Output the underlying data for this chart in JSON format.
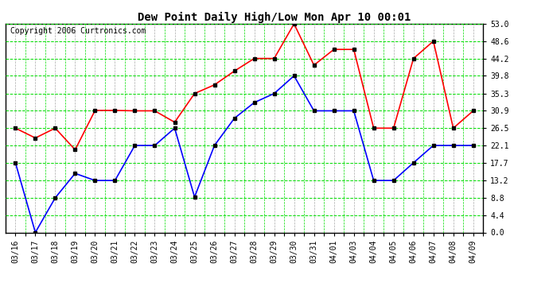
{
  "title": "Dew Point Daily High/Low Mon Apr 10 00:01",
  "copyright": "Copyright 2006 Curtronics.com",
  "x_labels": [
    "03/16",
    "03/17",
    "03/18",
    "03/19",
    "03/20",
    "03/21",
    "03/22",
    "03/23",
    "03/24",
    "03/25",
    "03/26",
    "03/27",
    "03/28",
    "03/29",
    "03/30",
    "03/31",
    "04/01",
    "04/03",
    "04/04",
    "04/05",
    "04/06",
    "04/07",
    "04/08",
    "04/09"
  ],
  "high_values": [
    26.5,
    24.0,
    26.5,
    21.0,
    31.0,
    31.0,
    30.9,
    30.9,
    28.0,
    35.3,
    37.5,
    41.0,
    44.2,
    44.2,
    53.0,
    42.5,
    46.5,
    46.5,
    26.5,
    26.5,
    44.2,
    48.6,
    26.5,
    30.9
  ],
  "low_values": [
    17.7,
    0.0,
    8.8,
    15.0,
    13.2,
    13.2,
    22.1,
    22.1,
    26.5,
    9.0,
    22.1,
    29.0,
    33.0,
    35.3,
    39.8,
    30.9,
    30.9,
    30.9,
    13.2,
    13.2,
    17.7,
    22.1,
    22.1,
    22.1
  ],
  "high_color": "#ff0000",
  "low_color": "#0000ff",
  "bg_color": "#ffffff",
  "plot_bg_color": "#ffffff",
  "grid_h_color": "#00dd00",
  "grid_v_color": "#aaaaaa",
  "y_ticks": [
    0.0,
    4.4,
    8.8,
    13.2,
    17.7,
    22.1,
    26.5,
    30.9,
    35.3,
    39.8,
    44.2,
    48.6,
    53.0
  ],
  "ylim": [
    0.0,
    53.0
  ],
  "marker": "s",
  "marker_size": 3,
  "linewidth": 1.2,
  "title_fontsize": 10,
  "copyright_fontsize": 7,
  "tick_fontsize": 7
}
